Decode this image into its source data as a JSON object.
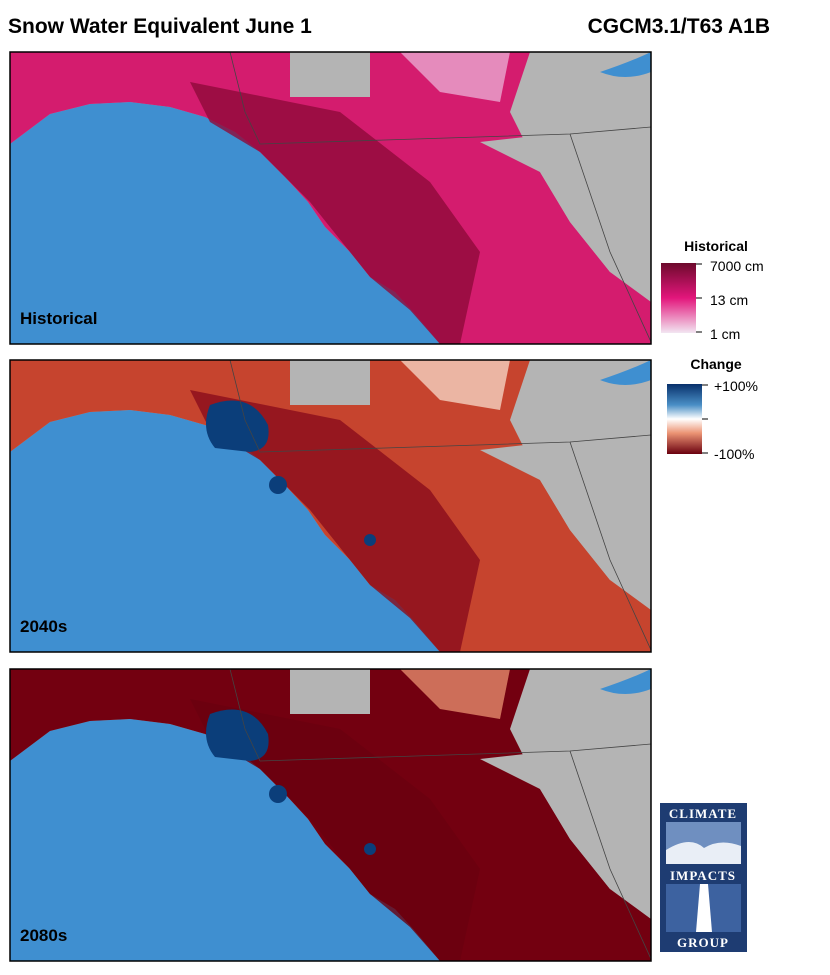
{
  "header": {
    "title": "Snow Water Equivalent June 1",
    "model": "CGCM3.1/T63 A1B"
  },
  "panels": [
    "Historical",
    "2040s",
    "2080s"
  ],
  "legends": {
    "historical": {
      "title": "Historical",
      "labels": [
        "7000 cm",
        "13 cm",
        "1 cm"
      ]
    },
    "change": {
      "title": "Change",
      "labels": [
        "+100%",
        "-100%"
      ]
    }
  },
  "logo": [
    "CLIMATE",
    "IMPACTS",
    "GROUP"
  ]
}
